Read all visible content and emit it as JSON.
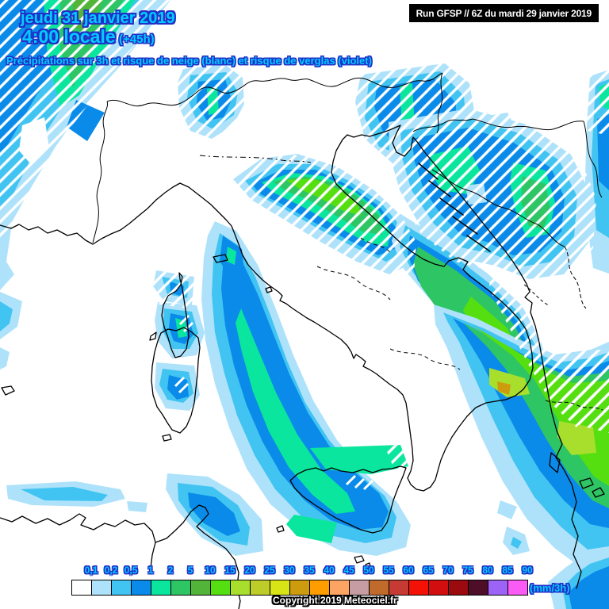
{
  "header": {
    "date_line": "jeudi 31 janvier 2019",
    "time_line": "4:00 locale",
    "offset_label": "(+45h)",
    "subtitle": "Précipitations sur 3h et risque de neige (blanc) et risque de verglas (violet)",
    "run_info": "Run GFSP // 6Z du mardi 29 janvier 2019",
    "title_color": "#00CCFF",
    "title_outline_color": "#2230C8"
  },
  "map": {
    "sea_color": "#FFFFFF",
    "coastline_color": "#000000",
    "snow_hatch_color": "#FFFFFF"
  },
  "palette": {
    "lb": "#AEE2FB",
    "cy": "#41C4F1",
    "bl": "#0A8BEA",
    "mg": "#0BE69E",
    "gr": "#2EC565",
    "og": "#53B43A",
    "bg": "#55DF10",
    "yg": "#A8DF2D",
    "gold": "#CC9C0E",
    "white": "#FFFFFF"
  },
  "legend": {
    "unit_label": "(mm/3h)",
    "cells": [
      {
        "value": "0,1",
        "color": "#FFFFFF"
      },
      {
        "value": "0,2",
        "color": "#AEE2FB"
      },
      {
        "value": "0,5",
        "color": "#41C4F1"
      },
      {
        "value": "1",
        "color": "#0A8BEA"
      },
      {
        "value": "2",
        "color": "#0BE69E"
      },
      {
        "value": "5",
        "color": "#2EC565"
      },
      {
        "value": "10",
        "color": "#53B43A"
      },
      {
        "value": "15",
        "color": "#55DF10"
      },
      {
        "value": "20",
        "color": "#A8DF2D"
      },
      {
        "value": "25",
        "color": "#BECC2A"
      },
      {
        "value": "30",
        "color": "#D9E416"
      },
      {
        "value": "35",
        "color": "#CC9C0E"
      },
      {
        "value": "40",
        "color": "#FF9D00"
      },
      {
        "value": "45",
        "color": "#FCA463"
      },
      {
        "value": "50",
        "color": "#C69DA3"
      },
      {
        "value": "55",
        "color": "#C06B2B"
      },
      {
        "value": "60",
        "color": "#C53B33"
      },
      {
        "value": "65",
        "color": "#F41105"
      },
      {
        "value": "70",
        "color": "#D20E0E"
      },
      {
        "value": "75",
        "color": "#9A0A0E"
      },
      {
        "value": "80",
        "color": "#4E0E28"
      },
      {
        "value": "85",
        "color": "#9C63F6"
      },
      {
        "value": "90",
        "color": "#FB5BF5"
      }
    ]
  },
  "footer": {
    "copyright": "Copyright 2019 Meteociel.fr"
  }
}
